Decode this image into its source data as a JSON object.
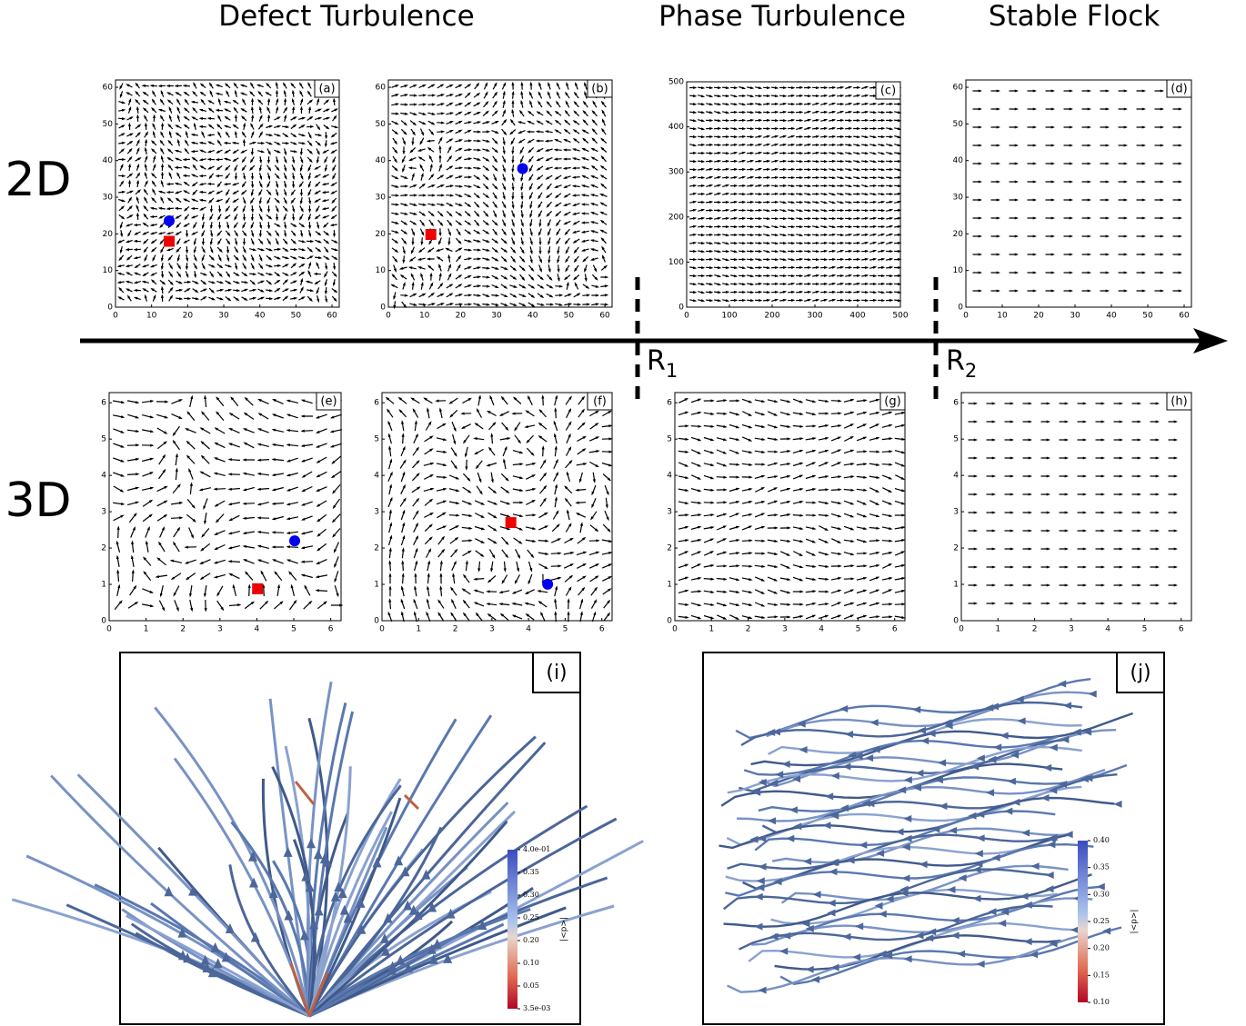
{
  "headers": [
    "Defect Turbulence",
    "Phase Turbulence",
    "Stable Flock"
  ],
  "rows": [
    "2D",
    "3D"
  ],
  "thresholds": [
    {
      "label": "R",
      "sub": "1"
    },
    {
      "label": "R",
      "sub": "2"
    }
  ],
  "panels": [
    {
      "label": "(a)",
      "xlim": [
        0,
        62
      ],
      "ylim": [
        0,
        62
      ],
      "xticks": [
        0,
        10,
        20,
        30,
        40,
        50,
        60
      ],
      "yticks": [
        0,
        10,
        20,
        30,
        40,
        50,
        60
      ]
    },
    {
      "label": "(b)",
      "xlim": [
        0,
        62
      ],
      "ylim": [
        0,
        62
      ],
      "xticks": [
        0,
        10,
        20,
        30,
        40,
        50,
        60
      ],
      "yticks": [
        0,
        10,
        20,
        30,
        40,
        50,
        60
      ]
    },
    {
      "label": "(c)",
      "xlim": [
        0,
        500
      ],
      "ylim": [
        0,
        500
      ],
      "xticks": [
        0,
        100,
        200,
        300,
        400,
        500
      ],
      "yticks": [
        0,
        100,
        200,
        300,
        400,
        500
      ]
    },
    {
      "label": "(d)",
      "xlim": [
        0,
        62
      ],
      "ylim": [
        0,
        62
      ],
      "xticks": [
        0,
        10,
        20,
        30,
        40,
        50,
        60
      ],
      "yticks": [
        0,
        10,
        20,
        30,
        40,
        50,
        60
      ]
    },
    {
      "label": "(e)",
      "xlim": [
        0,
        6.28
      ],
      "ylim": [
        0,
        6.28
      ],
      "xticks": [
        0,
        1,
        2,
        3,
        4,
        5,
        6
      ],
      "yticks": [
        0,
        1,
        2,
        3,
        4,
        5,
        6
      ]
    },
    {
      "label": "(f)",
      "xlim": [
        0,
        6.28
      ],
      "ylim": [
        0,
        6.28
      ],
      "xticks": [
        0,
        1,
        2,
        3,
        4,
        5,
        6
      ],
      "yticks": [
        0,
        1,
        2,
        3,
        4,
        5,
        6
      ]
    },
    {
      "label": "(g)",
      "xlim": [
        0,
        6.28
      ],
      "ylim": [
        0,
        6.28
      ],
      "xticks": [
        0,
        1,
        2,
        3,
        4,
        5,
        6
      ],
      "yticks": [
        0,
        1,
        2,
        3,
        4,
        5,
        6
      ]
    },
    {
      "label": "(h)",
      "xlim": [
        0,
        6.28
      ],
      "ylim": [
        0,
        6.28
      ],
      "xticks": [
        0,
        1,
        2,
        3,
        4,
        5,
        6
      ],
      "yticks": [
        0,
        1,
        2,
        3,
        4,
        5,
        6
      ]
    }
  ],
  "streamlines": [
    {
      "label": "(i)",
      "colorbar_title": "|<p>|",
      "colorbar_ticks": [
        "4.0e-01",
        "0.35",
        "0.30",
        "0.25",
        "0.20",
        "0.10",
        "0.05",
        "3.5e-03"
      ]
    },
    {
      "label": "(j)",
      "colorbar_title": "|<p>|",
      "colorbar_ticks": [
        "0.40",
        "0.35",
        "0.30",
        "0.25",
        "0.20",
        "0.15",
        "0.10"
      ]
    }
  ]
}
